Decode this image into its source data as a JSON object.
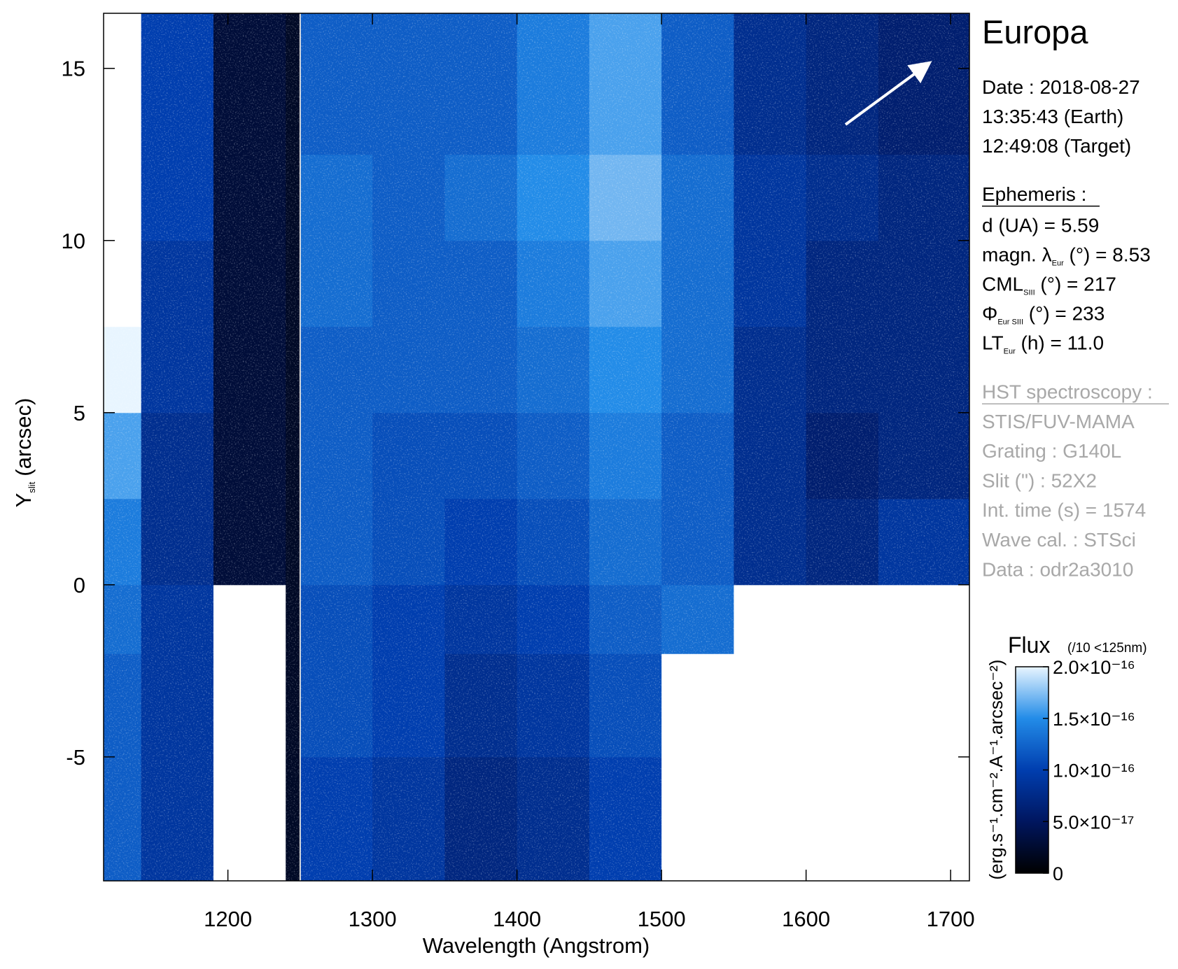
{
  "chart_data": {
    "type": "heatmap",
    "title": "Europa",
    "x_label": "Wavelength (Angstrom)",
    "y_label": {
      "main": "Y",
      "sub": "slit",
      "rest": "(arcsec)"
    },
    "x_edges": [
      1114,
      1140,
      1190,
      1240,
      1250,
      1300,
      1350,
      1400,
      1450,
      1500,
      1550,
      1600,
      1650,
      1713
    ],
    "y_edges": [
      -8.6,
      -5,
      -2,
      0,
      2.5,
      5,
      7.5,
      10,
      12.5,
      16.6
    ],
    "z": [
      [
        1.2e-16,
        9e-17,
        2.5e-16,
        2e-17,
        1e-16,
        9e-17,
        7e-17,
        8e-17,
        1e-16,
        2.5e-16,
        2.5e-16,
        2.5e-16,
        2.5e-16
      ],
      [
        1.2e-16,
        9e-17,
        2.5e-16,
        2e-17,
        1.1e-16,
        1e-16,
        8e-17,
        9e-17,
        1.1e-16,
        2.5e-16,
        2.5e-16,
        2.5e-16,
        2.5e-16
      ],
      [
        1.3e-16,
        9e-17,
        2.5e-16,
        2e-17,
        1.1e-16,
        1e-16,
        9e-17,
        1e-16,
        1.2e-16,
        1.3e-16,
        2.5e-16,
        2.5e-16,
        2.5e-16
      ],
      [
        1.4e-16,
        8e-17,
        3e-17,
        2e-17,
        1.2e-16,
        1.1e-16,
        1e-16,
        1.1e-16,
        1.3e-16,
        1.2e-16,
        8e-17,
        7e-17,
        9e-17
      ],
      [
        1.6e-16,
        8e-17,
        3e-17,
        2e-17,
        1.2e-16,
        1.1e-16,
        1.1e-16,
        1.2e-16,
        1.4e-16,
        1.2e-16,
        8e-17,
        6e-17,
        7e-17
      ],
      [
        2e-16,
        9e-17,
        3e-17,
        2e-17,
        1.2e-16,
        1.2e-16,
        1.2e-16,
        1.3e-16,
        1.5e-16,
        1.3e-16,
        8e-17,
        7e-17,
        7e-17
      ],
      [
        2.5e-16,
        9e-17,
        3e-17,
        2e-17,
        1.3e-16,
        1.2e-16,
        1.2e-16,
        1.4e-16,
        1.6e-16,
        1.3e-16,
        9e-17,
        7e-17,
        7e-17
      ],
      [
        2.5e-16,
        1e-16,
        3e-17,
        2e-17,
        1.3e-16,
        1.2e-16,
        1.3e-16,
        1.5e-16,
        1.7e-16,
        1.3e-16,
        9e-17,
        8e-17,
        7e-17
      ],
      [
        2.5e-16,
        1e-16,
        3e-17,
        2e-17,
        1.2e-16,
        1.2e-16,
        1.2e-16,
        1.4e-16,
        1.6e-16,
        1.2e-16,
        8e-17,
        7e-17,
        6e-17
      ]
    ],
    "divider": 1250,
    "xlim": [
      1114,
      1713
    ],
    "ylim": [
      -8.6,
      16.6
    ],
    "xticks": [
      1200,
      1300,
      1400,
      1500,
      1600,
      1700
    ],
    "yticks": [
      -5,
      0,
      5,
      10,
      15
    ],
    "colorbar": {
      "title": "Flux",
      "note": "(/10 <125nm)",
      "label": "(erg.s⁻¹.cm⁻².A⁻¹.arcsec⁻²)",
      "clim": [
        0,
        2e-16
      ],
      "ticks": [
        {
          "value": 0,
          "label": "0"
        },
        {
          "value": 5e-17,
          "label": "5.0×10⁻¹⁷"
        },
        {
          "value": 1e-16,
          "label": "1.0×10⁻¹⁶"
        },
        {
          "value": 1.5e-16,
          "label": "1.5×10⁻¹⁶"
        },
        {
          "value": 2e-16,
          "label": "2.0×10⁻¹⁶"
        }
      ]
    },
    "info": {
      "date": [
        "Date : 2018-08-27",
        "13:35:43 (Earth)",
        "12:49:08 (Target)"
      ],
      "ephemeris_title": "Ephemeris :",
      "ephemeris": [
        {
          "main": "d (UA)",
          "sub": "",
          "rest": "    = 5.59"
        },
        {
          "main": "magn. λ",
          "sub": "Eur",
          "rest": " (°)  = 8.53"
        },
        {
          "main": "CML",
          "sub": "SIII",
          "rest": " (°) = 217"
        },
        {
          "main": "Φ",
          "sub": "Eur SIII",
          "rest": " (°) = 233"
        },
        {
          "main": "LT",
          "sub": "Eur",
          "rest": " (h) = 11.0"
        }
      ],
      "hst_title": "HST spectroscopy :",
      "hst": [
        "STIS/FUV-MAMA",
        "Grating : G140L",
        "Slit (\") : 52X2",
        "Int. time (s) = 1574",
        "Wave cal. : STSci",
        "Data : odr2a3010"
      ]
    }
  }
}
